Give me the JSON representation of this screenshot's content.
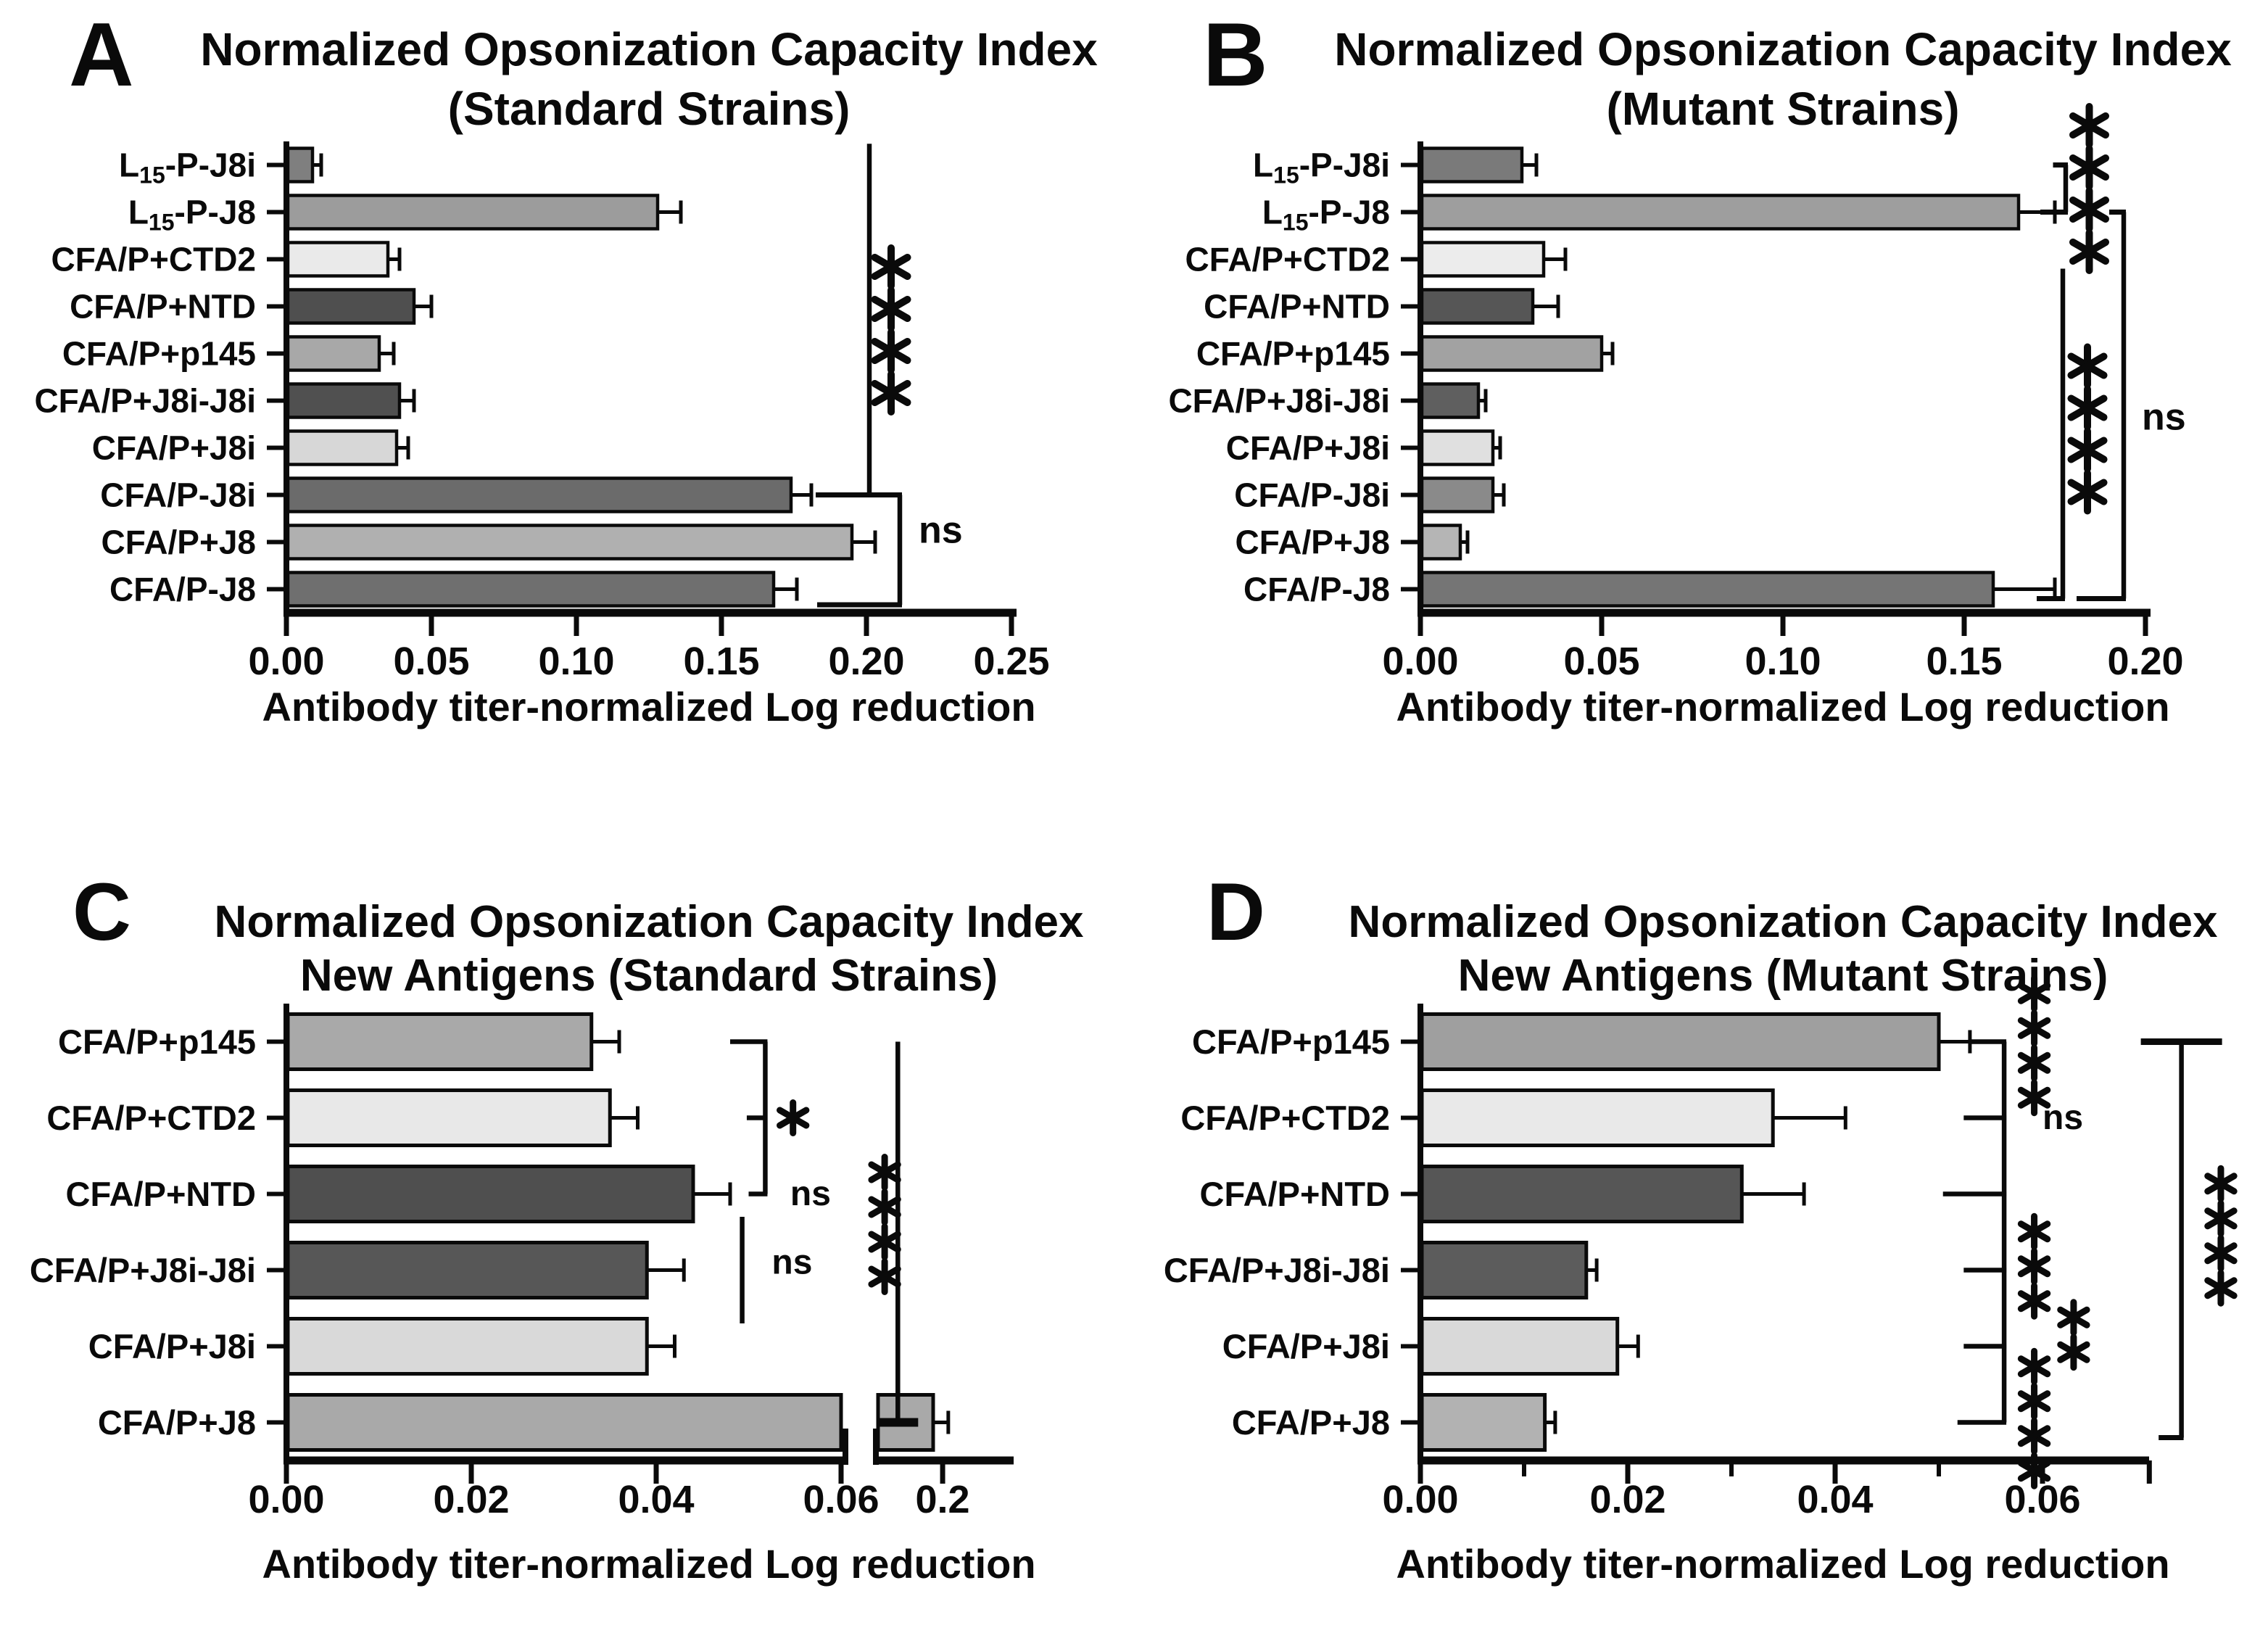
{
  "figure_background": "#ffffff",
  "chart_data": [
    {
      "panel_letter": "A",
      "type": "bar",
      "orientation": "horizontal",
      "title_line1": "Normalized Opsonization Capacity Index",
      "title_line2": "(Standard Strains)",
      "xlabel": "Antibody titer-normalized Log reduction",
      "xlim": [
        0,
        0.25
      ],
      "grid": false,
      "legend": false,
      "categories": [
        {
          "prefix": "L",
          "sub": "15",
          "rest": "-P-J8i"
        },
        {
          "prefix": "L",
          "sub": "15",
          "rest": "-P-J8"
        },
        {
          "label": "CFA/P+CTD2"
        },
        {
          "label": "CFA/P+NTD"
        },
        {
          "label": "CFA/P+p145"
        },
        {
          "label": "CFA/P+J8i-J8i"
        },
        {
          "label": "CFA/P+J8i"
        },
        {
          "label": "CFA/P-J8i"
        },
        {
          "label": "CFA/P+J8"
        },
        {
          "label": "CFA/P-J8"
        }
      ],
      "values": [
        0.009,
        0.128,
        0.035,
        0.044,
        0.032,
        0.039,
        0.038,
        0.174,
        0.195,
        0.168
      ],
      "errors": [
        0.003,
        0.008,
        0.004,
        0.006,
        0.005,
        0.005,
        0.004,
        0.007,
        0.008,
        0.008
      ],
      "colors": [
        "#7f7f7f",
        "#9c9c9c",
        "#eaeaea",
        "#4f4f4f",
        "#a8a8a8",
        "#505050",
        "#d7d7d7",
        "#6b6b6b",
        "#b0b0b0",
        "#6f6f6f"
      ],
      "xticks": [
        {
          "value": 0,
          "label": "0.00"
        },
        {
          "value": 0.05,
          "label": "0.05"
        },
        {
          "value": 0.1,
          "label": "0.10"
        },
        {
          "value": 0.15,
          "label": "0.15"
        },
        {
          "value": 0.2,
          "label": "0.20"
        },
        {
          "value": 0.25,
          "label": "0.25"
        }
      ],
      "annotations": [
        {
          "shape": "line",
          "x": 0.201,
          "row_from": -0.45,
          "row_to": 7,
          "hook_x_bot": 0.1825,
          "labels": [
            {
              "text": "****",
              "x": 0.2085,
              "row": 3.5,
              "vertical": true
            }
          ]
        },
        {
          "shape": "bracket",
          "x": 0.2115,
          "row_from": 7,
          "row_to": 9.33,
          "hook_x_top": 0.183,
          "hook_x_bot": 0.183,
          "labels": [
            {
              "text": "ns",
              "x": 0.218,
              "row": 7.75
            }
          ]
        }
      ]
    },
    {
      "panel_letter": "B",
      "type": "bar",
      "orientation": "horizontal",
      "title_line1": "Normalized Opsonization Capacity Index",
      "title_line2": "(Mutant Strains)",
      "xlabel": "Antibody titer-normalized Log reduction",
      "xlim": [
        0,
        0.2
      ],
      "grid": false,
      "legend": false,
      "categories": [
        {
          "prefix": "L",
          "sub": "15",
          "rest": "-P-J8i"
        },
        {
          "prefix": "L",
          "sub": "15",
          "rest": "-P-J8"
        },
        {
          "label": "CFA/P+CTD2"
        },
        {
          "label": "CFA/P+NTD"
        },
        {
          "label": "CFA/P+p145"
        },
        {
          "label": "CFA/P+J8i-J8i"
        },
        {
          "label": "CFA/P+J8i"
        },
        {
          "label": "CFA/P-J8i"
        },
        {
          "label": "CFA/P+J8"
        },
        {
          "label": "CFA/P-J8"
        }
      ],
      "values": [
        0.028,
        0.165,
        0.034,
        0.031,
        0.05,
        0.016,
        0.02,
        0.02,
        0.011,
        0.158
      ],
      "errors": [
        0.004,
        0.01,
        0.006,
        0.007,
        0.003,
        0.002,
        0.002,
        0.003,
        0.002,
        0.017
      ],
      "colors": [
        "#7a7a7a",
        "#9e9e9e",
        "#ececec",
        "#565656",
        "#a2a2a2",
        "#5f5f5f",
        "#e0e0e0",
        "#8a8a8a",
        "#b5b5b5",
        "#757575"
      ],
      "xticks": [
        {
          "value": 0,
          "label": "0.00"
        },
        {
          "value": 0.05,
          "label": "0.05"
        },
        {
          "value": 0.1,
          "label": "0.10"
        },
        {
          "value": 0.15,
          "label": "0.15"
        },
        {
          "value": 0.2,
          "label": "0.20"
        }
      ],
      "annotations": [
        {
          "shape": "bracket",
          "x": 0.178,
          "row_from": 0,
          "row_to": 1,
          "hook_x_top": 0.1745,
          "hook_x_bot": 0.171,
          "labels": [
            {
              "text": "****",
              "x": 0.1845,
              "row": 0.5,
              "vertical": true
            }
          ]
        },
        {
          "shape": "line",
          "x": 0.1772,
          "row_from": 2.2,
          "row_to": 9.2,
          "hook_x_bot": 0.17,
          "labels": [
            {
              "text": "****",
              "x": 0.184,
              "row": 5.6,
              "vertical": true
            }
          ]
        },
        {
          "shape": "bracket",
          "x": 0.194,
          "row_from": 1,
          "row_to": 9.2,
          "hook_x_top": 0.19,
          "hook_x_bot": 0.181,
          "labels": [
            {
              "text": "ns",
              "x": 0.199,
              "row": 5.35
            }
          ]
        }
      ]
    },
    {
      "panel_letter": "C",
      "type": "bar",
      "orientation": "horizontal",
      "title_line1": "Normalized Opsonization Capacity Index",
      "title_line2": "New Antigens (Standard Strains)",
      "xlabel": "Antibody titer-normalized Log reduction",
      "xlim": [
        0,
        0.06
      ],
      "axis_break": {
        "after_value": 0.06,
        "resume_label": "0.2"
      },
      "grid": false,
      "legend": false,
      "categories": [
        {
          "label": "CFA/P+p145"
        },
        {
          "label": "CFA/P+CTD2"
        },
        {
          "label": "CFA/P+NTD"
        },
        {
          "label": "CFA/P+J8i-J8i"
        },
        {
          "label": "CFA/P+J8i"
        },
        {
          "label": "CFA/P+J8"
        }
      ],
      "values": [
        0.033,
        0.035,
        0.044,
        0.039,
        0.039,
        0.2
      ],
      "errors": [
        0.003,
        0.003,
        0.004,
        0.004,
        0.003,
        0.012
      ],
      "colors": [
        "#a9a9a9",
        "#e8e8e8",
        "#4f4f4f",
        "#575757",
        "#d9d9d9",
        "#a9a9a9"
      ],
      "broken_bar_row": 5,
      "xticks": [
        {
          "value": 0,
          "label": "0.00"
        },
        {
          "value": 0.02,
          "label": "0.02"
        },
        {
          "value": 0.04,
          "label": "0.04"
        },
        {
          "value": 0.06,
          "label": "0.06"
        },
        {
          "value": 0.2,
          "label": "0.2"
        }
      ],
      "annotations": [
        {
          "shape": "bracket-multi",
          "x": 0.0518,
          "row_from": 0,
          "row_to": 2,
          "ticks": [
            {
              "row": 0,
              "x_to": 0.048
            },
            {
              "row": 1,
              "x_to": 0.0498
            },
            {
              "row": 2,
              "x_to": 0.05
            }
          ],
          "labels": [
            {
              "text": "*",
              "x": 0.0548,
              "row": 1.0,
              "vertical": true
            },
            {
              "text": "ns",
              "x": 0.0545,
              "row": 2.0
            }
          ]
        },
        {
          "shape": "line",
          "x": 0.0493,
          "row_from": 2.3,
          "row_to": 3.7,
          "labels": [
            {
              "text": "ns",
              "x": 0.0525,
              "row": 2.9
            }
          ]
        },
        {
          "shape": "line",
          "x": 0.105,
          "row_from": 0,
          "row_to": 5,
          "bottom_dash": true,
          "labels": [
            {
              "text": "****",
              "x": 0.077,
              "row": 2.4,
              "vertical": true
            }
          ]
        }
      ]
    },
    {
      "panel_letter": "D",
      "type": "bar",
      "orientation": "horizontal",
      "title_line1": "Normalized Opsonization Capacity Index",
      "title_line2": "New Antigens (Mutant Strains)",
      "xlabel": "Antibody titer-normalized Log reduction",
      "xlim": [
        0,
        0.07
      ],
      "grid": false,
      "legend": false,
      "categories": [
        {
          "label": "CFA/P+p145"
        },
        {
          "label": "CFA/P+CTD2"
        },
        {
          "label": "CFA/P+NTD"
        },
        {
          "label": "CFA/P+J8i-J8i"
        },
        {
          "label": "CFA/P+J8i"
        },
        {
          "label": "CFA/P+J8"
        }
      ],
      "values": [
        0.05,
        0.034,
        0.031,
        0.016,
        0.019,
        0.012
      ],
      "errors": [
        0.003,
        0.007,
        0.006,
        0.001,
        0.002,
        0.001
      ],
      "colors": [
        "#9f9f9f",
        "#e9e9e9",
        "#565656",
        "#5c5c5c",
        "#d9d9d9",
        "#b2b2b2"
      ],
      "xticks": [
        {
          "value": 0,
          "label": "0.00"
        },
        {
          "value": 0.02,
          "label": "0.02"
        },
        {
          "value": 0.04,
          "label": "0.04"
        },
        {
          "value": 0.06,
          "label": "0.06"
        }
      ],
      "minor_ticks": [
        0.01,
        0.03,
        0.05
      ],
      "end_tick": 0.0703,
      "annotations": [
        {
          "shape": "bracket-multi",
          "x": 0.0563,
          "row_from": 0,
          "row_to": 5,
          "ticks": [
            {
              "row": 0,
              "x_to": 0.0531
            },
            {
              "row": 1,
              "x_to": 0.0524
            },
            {
              "row": 2,
              "x_to": 0.0504
            },
            {
              "row": 3,
              "x_to": 0.0524
            },
            {
              "row": 4,
              "x_to": 0.0524
            },
            {
              "row": 5,
              "x_to": 0.0518
            }
          ],
          "labels": [
            {
              "text": "****",
              "x": 0.0592,
              "row": 0.05,
              "vertical": true
            },
            {
              "text": "ns",
              "x": 0.06,
              "row": 1.0
            },
            {
              "text": "***",
              "x": 0.0592,
              "row": 2.95,
              "vertical": true
            },
            {
              "text": "**",
              "x": 0.063,
              "row": 3.85,
              "vertical": true
            },
            {
              "text": "****",
              "x": 0.0592,
              "row": 4.95,
              "vertical": true
            }
          ]
        },
        {
          "shape": "line",
          "x": 0.0734,
          "row_from": 0,
          "row_to": 5.2,
          "top_cap": true,
          "hook_x_bot": 0.0712,
          "labels": [
            {
              "text": "****",
              "x": 0.0772,
              "row": 2.55,
              "vertical": true
            }
          ]
        }
      ]
    }
  ]
}
